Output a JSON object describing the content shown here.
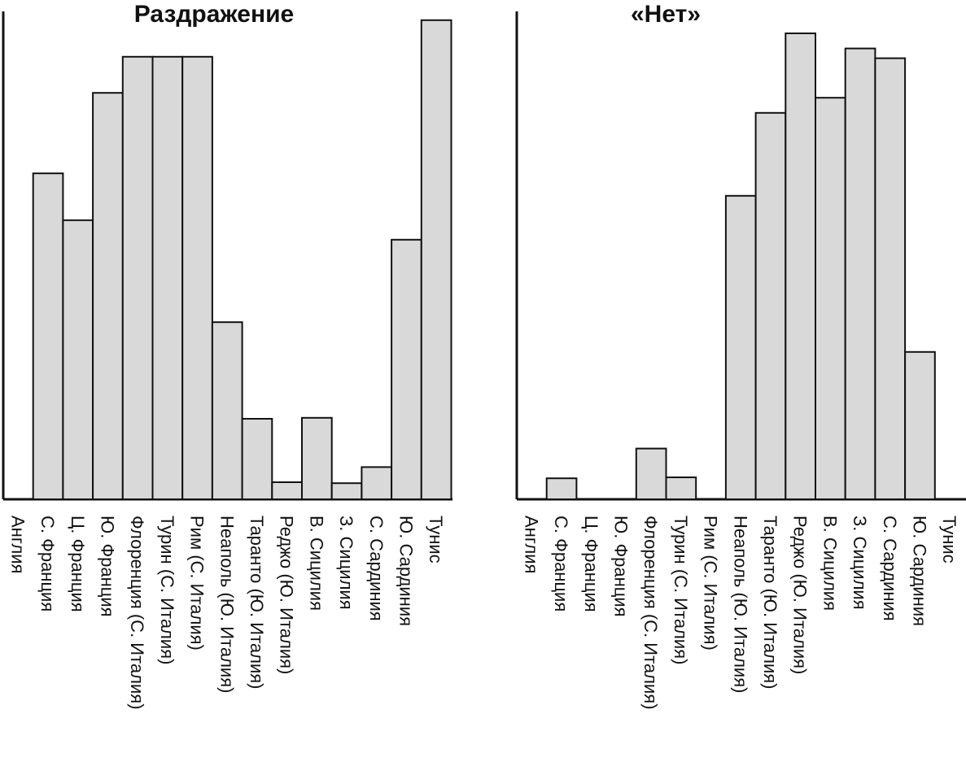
{
  "chart_data": [
    {
      "type": "bar",
      "title": "Раздражение",
      "ylim": [
        0,
        100
      ],
      "grid": false,
      "categories": [
        "Англия",
        "С. Франция",
        "Ц. Франция",
        "Ю. Франция",
        "Флоренция (С. Италия)",
        "Турин (С. Италия)",
        "Рим (С. Италия)",
        "Неаполь (Ю. Италия)",
        "Таранто (Ю. Италия)",
        "Реджо (Ю. Италия)",
        "В. Сицилия",
        "З. Сицилия",
        "С. Сардиния",
        "Ю. Сардиния",
        "Тунис"
      ],
      "values": [
        0,
        66.8,
        57.2,
        83.3,
        90.7,
        90.7,
        90.7,
        36.3,
        16.5,
        3.5,
        16.7,
        3.3,
        6.6,
        53.2,
        98.2
      ],
      "colors": {
        "bar": "#d9d9d9",
        "outline": "#111111"
      }
    },
    {
      "type": "bar",
      "title": "«Нет»",
      "ylim": [
        0,
        100
      ],
      "grid": false,
      "categories": [
        "Англия",
        "С. Франция",
        "Ц. Франция",
        "Ю. Франция",
        "Флоренция (С. Италия)",
        "Турин (С. Италия)",
        "Рим (С. Италия)",
        "Неаполь (Ю. Италия)",
        "Таранто (Ю. Италия)",
        "Реджо (Ю. Италия)",
        "В. Сицилия",
        "З. Сицилия",
        "С. Сардиния",
        "Ю. Сардиния",
        "Тунис"
      ],
      "values": [
        0,
        4.3,
        0,
        0,
        10.4,
        4.5,
        0,
        62.2,
        79.2,
        95.5,
        82.3,
        92.4,
        90.4,
        30.2,
        0
      ],
      "colors": {
        "bar": "#d9d9d9",
        "outline": "#111111"
      }
    }
  ]
}
